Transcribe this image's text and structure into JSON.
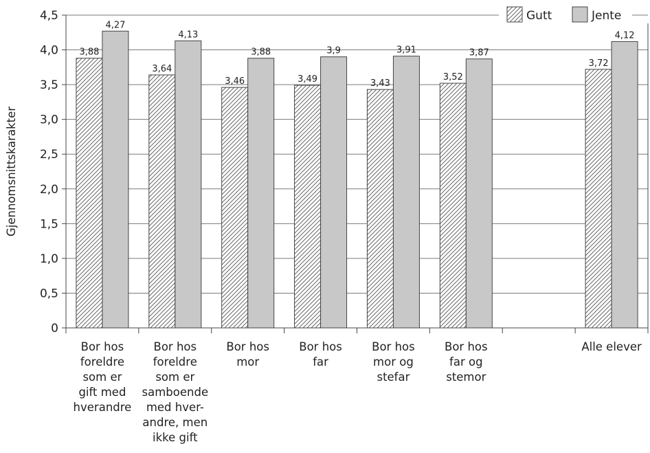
{
  "chart_data": {
    "type": "bar",
    "title": "",
    "xlabel": "",
    "ylabel": "Gjennomsnittskarakter",
    "ylim": [
      0,
      4.5
    ],
    "yticks": [
      "0",
      "0,5",
      "1,0",
      "1,5",
      "2,0",
      "2,5",
      "3,0",
      "3,5",
      "4,0",
      "4,5"
    ],
    "grid": true,
    "legend_position": "top-right",
    "categories": [
      [
        "Bor hos",
        "foreldre",
        "som er",
        "gift med",
        "hverandre"
      ],
      [
        "Bor hos",
        "foreldre",
        "som er",
        "samboende",
        "med hver-",
        "andre, men",
        "ikke gift"
      ],
      [
        "Bor hos",
        "mor"
      ],
      [
        "Bor hos",
        "far"
      ],
      [
        "Bor hos",
        "mor og",
        "stefar"
      ],
      [
        "Bor hos",
        "far og",
        "stemor"
      ],
      [
        ""
      ],
      [
        "Alle elever"
      ]
    ],
    "series": [
      {
        "name": "Gutt",
        "pattern": "hatched",
        "values": [
          3.88,
          3.64,
          3.46,
          3.49,
          3.43,
          3.52,
          null,
          3.72
        ],
        "labels": [
          "3,88",
          "3,64",
          "3,46",
          "3,49",
          "3,43",
          "3,52",
          "",
          "3,72"
        ]
      },
      {
        "name": "Jente",
        "color": "#c8c8c8",
        "values": [
          4.27,
          4.13,
          3.88,
          3.9,
          3.91,
          3.87,
          null,
          4.12
        ],
        "labels": [
          "4,27",
          "4,13",
          "3,88",
          "3,9",
          "3,91",
          "3,87",
          "",
          "4,12"
        ]
      }
    ]
  }
}
